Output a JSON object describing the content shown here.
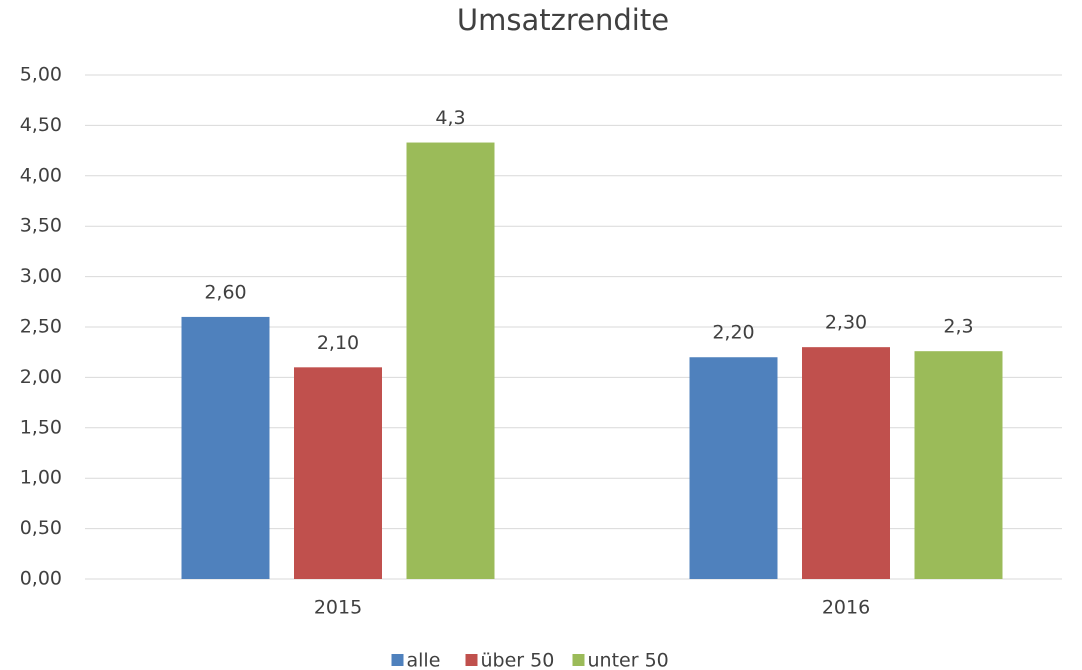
{
  "chart_data": {
    "type": "bar",
    "title": "Umsatzrendite",
    "categories": [
      "2015",
      "2016"
    ],
    "series": [
      {
        "name": "alle",
        "color": "#4f81bd",
        "values": [
          2.6,
          2.2
        ],
        "value_labels": [
          "2,60",
          "2,20"
        ]
      },
      {
        "name": "über 50",
        "color": "#c0504d",
        "values": [
          2.1,
          2.3
        ],
        "value_labels": [
          "2,10",
          "2,30"
        ]
      },
      {
        "name": "unter 50",
        "color": "#9bbb59",
        "values": [
          4.33,
          2.26
        ],
        "value_labels": [
          "4,3",
          "2,3"
        ]
      }
    ],
    "ylim": [
      0,
      5
    ],
    "yticks": [
      {
        "value": 0,
        "label": "0,00"
      },
      {
        "value": 0.5,
        "label": "0,50"
      },
      {
        "value": 1,
        "label": "1,00"
      },
      {
        "value": 1.5,
        "label": "1,50"
      },
      {
        "value": 2,
        "label": "2,00"
      },
      {
        "value": 2.5,
        "label": "2,50"
      },
      {
        "value": 3,
        "label": "3,00"
      },
      {
        "value": 3.5,
        "label": "3,50"
      },
      {
        "value": 4,
        "label": "4,00"
      },
      {
        "value": 4.5,
        "label": "4,50"
      },
      {
        "value": 5,
        "label": "5,00"
      }
    ],
    "grid": true,
    "legend": "bottom"
  }
}
